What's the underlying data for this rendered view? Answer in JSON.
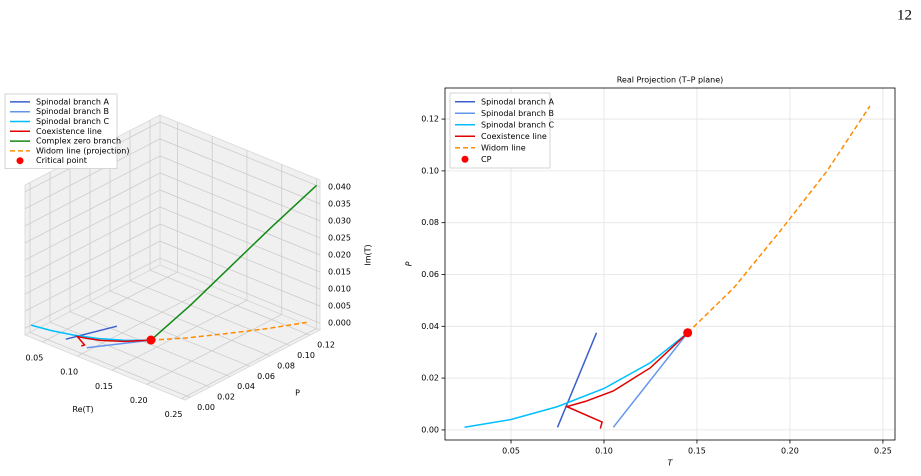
{
  "page_number": "12",
  "chart_data": [
    {
      "type": "line3d",
      "xlabel": "Re(T)",
      "ylabel": "P",
      "zlabel": "Im(T)",
      "xlim": [
        0.025,
        0.255
      ],
      "ylim": [
        -0.005,
        0.13
      ],
      "zlim": [
        -0.002,
        0.042
      ],
      "xticks": [
        0.05,
        {
          "value": 0.1,
          "label": "0.10"
        },
        {
          "value": 0.15,
          "label": "0.15"
        },
        {
          "value": 0.2,
          "label": "0.20"
        },
        0.25
      ],
      "yticks": [
        {
          "value": 0,
          "label": "0.00"
        },
        0.02,
        0.04,
        0.06,
        0.08,
        {
          "value": 0.1,
          "label": "0.10"
        },
        0.12
      ],
      "zticks": [
        {
          "value": 0,
          "label": "0.000"
        },
        0.005,
        {
          "value": 0.01,
          "label": "0.010"
        },
        0.015,
        {
          "value": 0.02,
          "label": "0.020"
        },
        0.025,
        {
          "value": 0.03,
          "label": "0.030"
        },
        0.035,
        {
          "value": 0.04,
          "label": "0.040"
        }
      ],
      "grid": true,
      "series": [
        {
          "name": "Spinodal branch A",
          "color": "#3a5fcd",
          "style": "solid",
          "x": [
            0.075,
            0.096
          ],
          "y": [
            0.001,
            0.0375
          ],
          "z": [
            0,
            0
          ]
        },
        {
          "name": "Spinodal branch B",
          "color": "#6495ed",
          "style": "solid",
          "x": [
            0.105,
            0.145
          ],
          "y": [
            0.001,
            0.0375
          ],
          "z": [
            0,
            0
          ]
        },
        {
          "name": "Spinodal branch C",
          "color": "#00bfff",
          "style": "solid",
          "x": [
            0.025,
            0.05,
            0.075,
            0.1,
            0.125,
            0.145
          ],
          "y": [
            0.001,
            0.004,
            0.009,
            0.016,
            0.026,
            0.0375
          ],
          "z": [
            0,
            0,
            0,
            0,
            0,
            0
          ]
        },
        {
          "name": "Coexistence line",
          "color": "#e00000",
          "style": "solid",
          "x": [
            0.145,
            0.125,
            0.105,
            0.09,
            0.08,
            0.099,
            0.098
          ],
          "y": [
            0.0375,
            0.024,
            0.015,
            0.011,
            0.009,
            0.003,
            0.0005
          ],
          "z": [
            0,
            0,
            0,
            0,
            0,
            0,
            0
          ]
        },
        {
          "name": "Complex zero branch",
          "color": "#138a13",
          "style": "solid",
          "x": [
            0.145,
            0.17,
            0.195,
            0.22,
            0.25
          ],
          "y": [
            0.0375,
            0.06,
            0.083,
            0.106,
            0.13
          ],
          "z": [
            0,
            0.009,
            0.019,
            0.029,
            0.04
          ]
        },
        {
          "name": "Widom line (projection)",
          "color": "#ff8c00",
          "style": "dashed",
          "x": [
            0.145,
            0.17,
            0.195,
            0.22,
            0.243
          ],
          "y": [
            0.0375,
            0.055,
            0.077,
            0.1,
            0.125
          ],
          "z": [
            0,
            0,
            0,
            0,
            0
          ]
        },
        {
          "name": "Critical point",
          "color": "#ff0000",
          "style": "point",
          "x": [
            0.145
          ],
          "y": [
            0.0375
          ],
          "z": [
            0
          ]
        }
      ]
    },
    {
      "type": "line",
      "title": "Real Projection (T–P plane)",
      "xlabel": "T",
      "ylabel": "P",
      "xlim": [
        0.0145,
        0.2565
      ],
      "ylim": [
        -0.0039,
        0.132
      ],
      "xticks": [
        0.05,
        {
          "value": 0.1,
          "label": "0.10"
        },
        {
          "value": 0.15,
          "label": "0.15"
        },
        {
          "value": 0.2,
          "label": "0.20"
        },
        0.25
      ],
      "yticks": [
        {
          "value": 0,
          "label": "0.00"
        },
        0.02,
        0.04,
        0.06,
        0.08,
        {
          "value": 0.1,
          "label": "0.10"
        },
        0.12
      ],
      "grid": true,
      "series": [
        {
          "name": "Spinodal branch A",
          "color": "#3a5fcd",
          "style": "solid",
          "x": [
            0.075,
            0.096
          ],
          "values": [
            0.001,
            0.0375
          ]
        },
        {
          "name": "Spinodal branch B",
          "color": "#6495ed",
          "style": "solid",
          "x": [
            0.105,
            0.145
          ],
          "values": [
            0.001,
            0.0375
          ]
        },
        {
          "name": "Spinodal branch C",
          "color": "#00bfff",
          "style": "solid",
          "x": [
            0.025,
            0.05,
            0.075,
            0.1,
            0.125,
            0.145
          ],
          "values": [
            0.001,
            0.004,
            0.009,
            0.016,
            0.026,
            0.0375
          ]
        },
        {
          "name": "Coexistence line",
          "color": "#e00000",
          "style": "solid",
          "x": [
            0.145,
            0.125,
            0.105,
            0.09,
            0.08,
            0.099,
            0.098
          ],
          "values": [
            0.0375,
            0.024,
            0.015,
            0.011,
            0.009,
            0.003,
            0.0005
          ]
        },
        {
          "name": "Widom line",
          "color": "#ff8c00",
          "style": "dashed",
          "x": [
            0.145,
            0.17,
            0.195,
            0.22,
            0.243
          ],
          "values": [
            0.0375,
            0.055,
            0.077,
            0.1,
            0.125
          ]
        },
        {
          "name": "CP",
          "color": "#ff0000",
          "style": "point",
          "x": [
            0.145
          ],
          "values": [
            0.0375
          ]
        }
      ]
    }
  ]
}
